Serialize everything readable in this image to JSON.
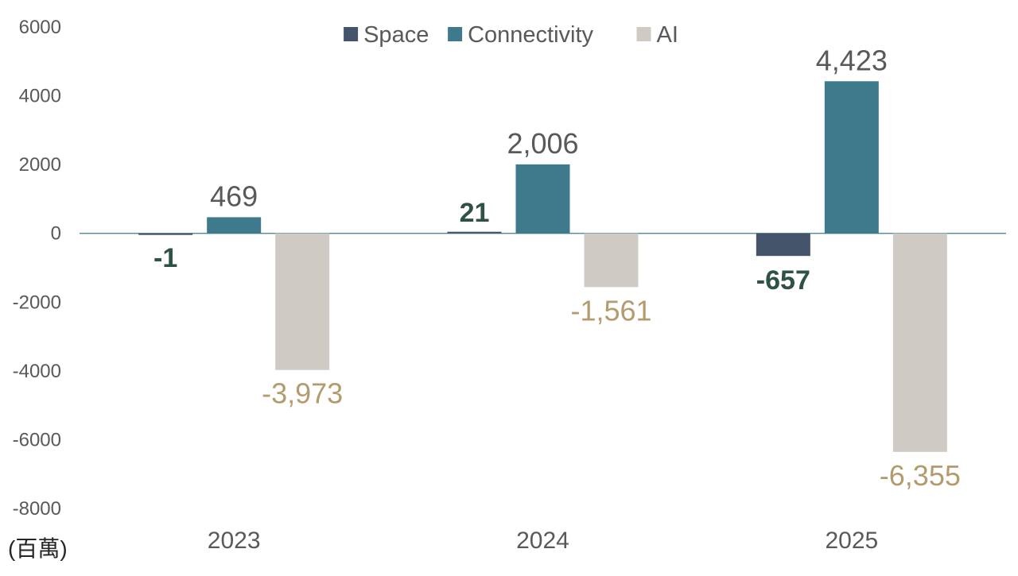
{
  "chart_data": {
    "type": "bar",
    "categories": [
      "2023",
      "2024",
      "2025"
    ],
    "series": [
      {
        "name": "Space",
        "values": [
          -1,
          21,
          -657
        ],
        "color": "#44546a",
        "label_color": "#2f5246",
        "label_bold": true
      },
      {
        "name": "Connectivity",
        "values": [
          469,
          2006,
          4423
        ],
        "color": "#3f7a8c",
        "label_color": "#595959",
        "label_bold": false
      },
      {
        "name": "AI",
        "values": [
          -3973,
          -1561,
          -6355
        ],
        "color": "#cfcac3",
        "label_color": "#b39b6e",
        "label_bold": false
      }
    ],
    "data_labels": [
      [
        "-1",
        "21",
        "-657"
      ],
      [
        "469",
        "2,006",
        "4,423"
      ],
      [
        "-3,973",
        "-1,561",
        "-6,355"
      ]
    ],
    "y_ticks": [
      "6000",
      "4000",
      "2000",
      "0",
      "-2000",
      "-4000",
      "-6000",
      "-8000"
    ],
    "ylim": [
      -8000,
      6000
    ],
    "unit_label": "(百萬)",
    "legend_position": "top-center",
    "grid": false,
    "zero_line_color": "#3f7a8c"
  }
}
